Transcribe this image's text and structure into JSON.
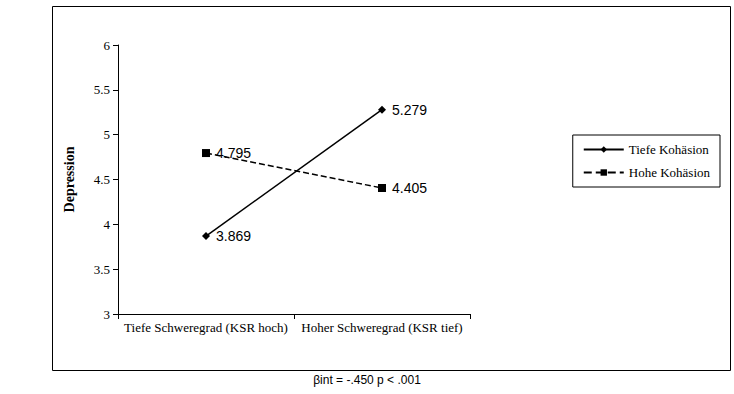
{
  "chart_data": {
    "type": "line",
    "y_label": "Depression",
    "categories": [
      "Tiefe Schweregrad (KSR hoch)",
      "Hoher Schweregrad (KSR tief)"
    ],
    "series": [
      {
        "name": "Tiefe Kohäsion",
        "color": "#000000",
        "marker": "diamond",
        "line_style": "solid",
        "values": [
          3.869,
          5.279
        ]
      },
      {
        "name": "Hohe Kohäsion",
        "color": "#000000",
        "marker": "square",
        "line_style": "dashed",
        "values": [
          4.795,
          4.405
        ]
      }
    ],
    "ylim": [
      3,
      6
    ],
    "yticks": [
      3,
      3.5,
      4,
      4.5,
      5,
      5.5,
      6
    ],
    "grid": false,
    "legend": "right",
    "data_labels": true,
    "annotation": "βint = -.450 p < .001"
  }
}
